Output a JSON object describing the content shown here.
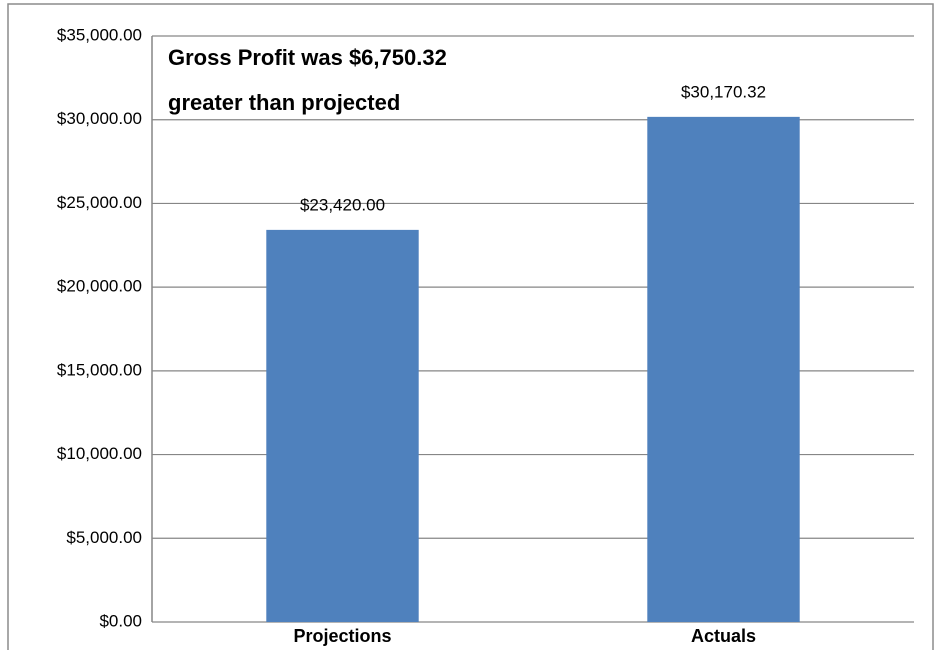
{
  "chart_data": {
    "type": "bar",
    "annotation": [
      "Gross Profit was $6,750.32",
      "greater than projected"
    ],
    "categories": [
      "Projections",
      "Actuals"
    ],
    "values": [
      23420.0,
      30170.32
    ],
    "value_labels": [
      "$23,420.00",
      "$30,170.32"
    ],
    "color": "#4f81bd",
    "ylim": [
      0,
      35000
    ],
    "yticks": [
      {
        "value": 0,
        "label": "$0.00"
      },
      {
        "value": 5000,
        "label": "$5,000.00"
      },
      {
        "value": 10000,
        "label": "$10,000.00"
      },
      {
        "value": 15000,
        "label": "$15,000.00"
      },
      {
        "value": 20000,
        "label": "$20,000.00"
      },
      {
        "value": 25000,
        "label": "$25,000.00"
      },
      {
        "value": 30000,
        "label": "$30,000.00"
      },
      {
        "value": 35000,
        "label": "$35,000.00"
      }
    ],
    "grid": true
  }
}
